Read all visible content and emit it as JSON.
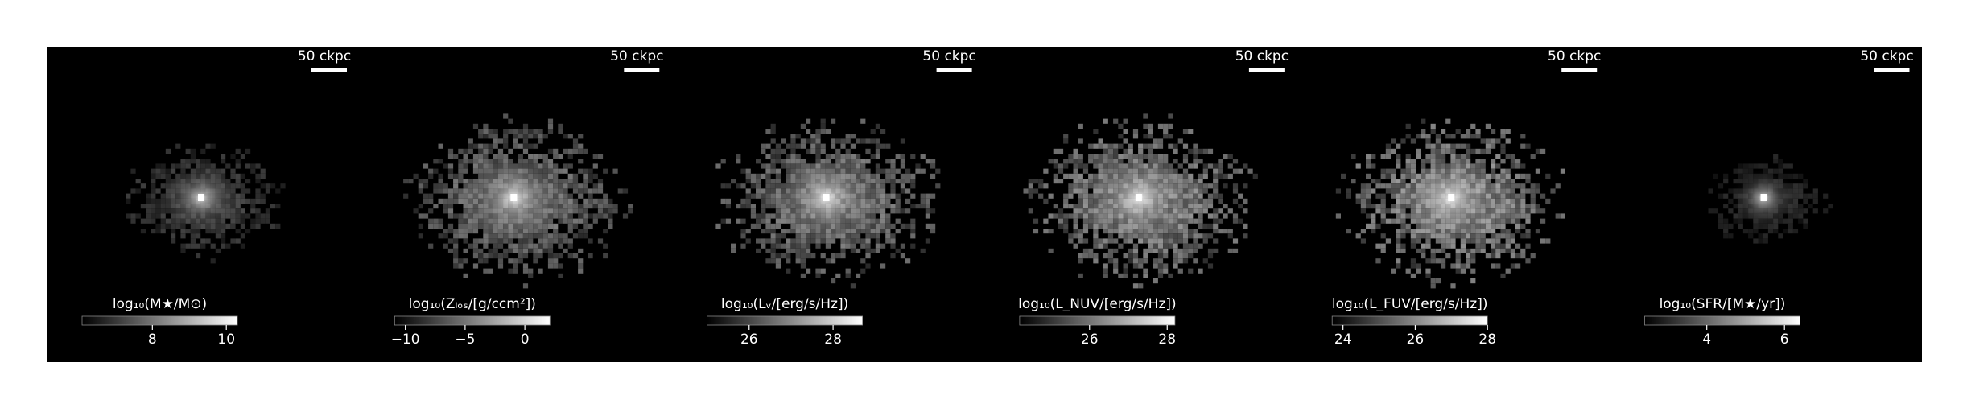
{
  "chart_data": [
    {
      "type": "image",
      "colorbar_label": "log₁₀(M★/M⊙)",
      "clim": [
        6.1,
        10.3
      ],
      "cticks": [
        8,
        10
      ],
      "scale_bar_label": "50 ckpc"
    },
    {
      "type": "image",
      "colorbar_label": "log₁₀(Zₗₒₛ/[g/ccm²])",
      "clim": [
        -10.9,
        2.1
      ],
      "cticks": [
        {
          "value": -10,
          "label": "−10"
        },
        {
          "value": -5,
          "label": "−5"
        },
        0
      ],
      "scale_bar_label": "50 ckpc"
    },
    {
      "type": "image",
      "colorbar_label": "log₁₀(Lᵥ/[erg/s/Hz])",
      "clim": [
        25.0,
        28.7
      ],
      "cticks": [
        26,
        28
      ],
      "scale_bar_label": "50 ckpc"
    },
    {
      "type": "image",
      "colorbar_label": "log₁₀(L_NUV/[erg/s/Hz])",
      "clim": [
        24.2,
        28.2
      ],
      "cticks": [
        26,
        28
      ],
      "scale_bar_label": "50 ckpc"
    },
    {
      "type": "image",
      "colorbar_label": "log₁₀(L_FUV/[erg/s/Hz])",
      "clim": [
        23.7,
        28.0
      ],
      "cticks": [
        24,
        26,
        28
      ],
      "scale_bar_label": "50 ckpc"
    },
    {
      "type": "image",
      "colorbar_label": "log₁₀(SFR/[M★/yr])",
      "clim": [
        2.4,
        6.4
      ],
      "cticks": [
        4,
        6
      ],
      "scale_bar_label": "50 ckpc"
    }
  ]
}
